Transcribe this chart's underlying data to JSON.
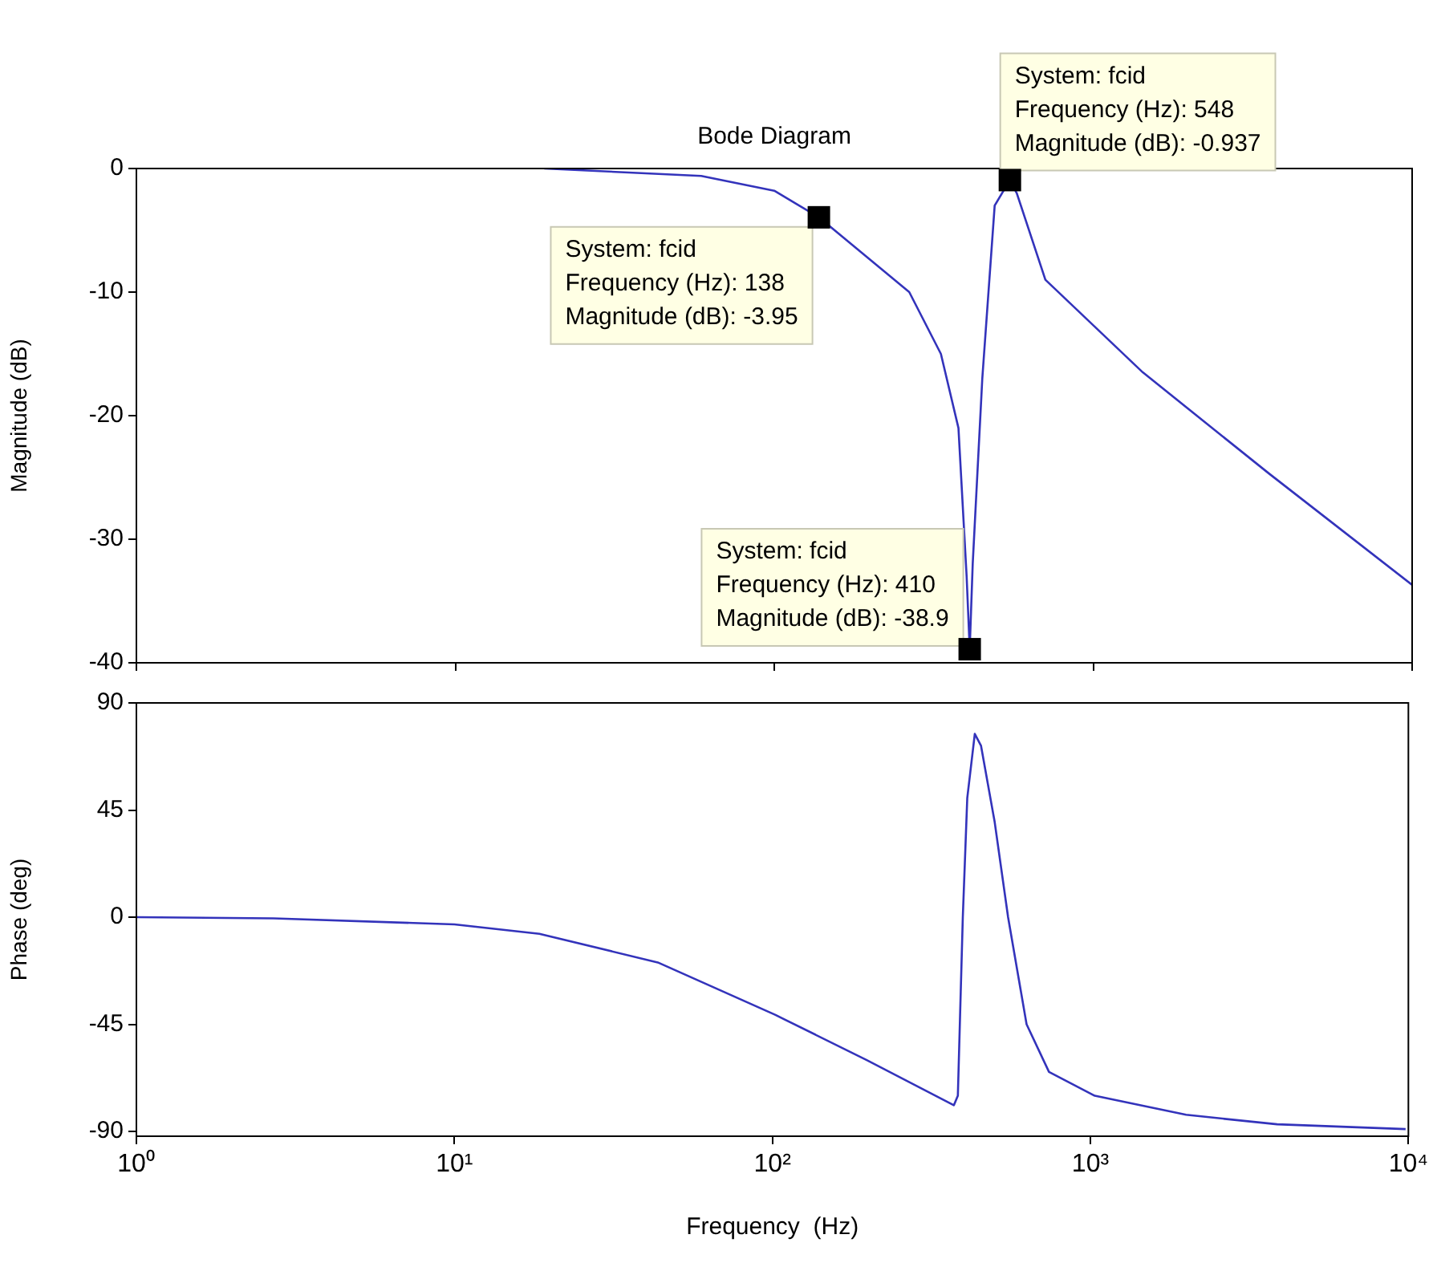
{
  "chart_data": [
    {
      "type": "line",
      "title": "Bode Diagram",
      "ylabel": "Magnitude (dB)",
      "log": "x",
      "grid": false,
      "tick_labels": "y",
      "xlim": [
        1,
        10000
      ],
      "xticks": [
        1,
        10,
        100,
        1000,
        10000
      ],
      "ylim": [
        -40,
        0
      ],
      "yticks": [
        -40,
        -30,
        -20,
        -10,
        0
      ],
      "x": [
        19,
        59,
        100,
        138,
        265,
        333,
        378,
        401,
        410,
        419,
        449,
        491,
        548,
        576,
        708,
        1431,
        3564,
        10000
      ],
      "series": [
        {
          "color": "#3333bb",
          "values": [
            0,
            -0.6,
            -1.8,
            -3.95,
            -10,
            -15,
            -21,
            -33,
            -38.9,
            -32,
            -17,
            -3,
            -0.937,
            -2,
            -9,
            -16.5,
            -24.7,
            -33.7
          ]
        }
      ],
      "annotations": [
        {
          "text": "System: fcid\nFrequency (Hz): 138\nMagnitude (dB): -3.95",
          "x": 138,
          "y": -3.95
        },
        {
          "text": "System: fcid\nFrequency (Hz): 410\nMagnitude (dB): -38.9",
          "x": 410,
          "y": -38.9
        },
        {
          "text": "System: fcid\nFrequency (Hz): 548\nMagnitude (dB): -0.937",
          "x": 548,
          "y": -0.937
        }
      ]
    },
    {
      "type": "line",
      "xlabel": "Frequency  (Hz)",
      "ylabel": "Phase (deg)",
      "log": "x",
      "grid": false,
      "xlim": [
        1,
        10000
      ],
      "xticks": [
        {
          "value": 1,
          "label": "10⁰"
        },
        {
          "value": 10,
          "label": "10¹"
        },
        {
          "value": 100,
          "label": "10²"
        },
        {
          "value": 1000,
          "label": "10³"
        },
        {
          "value": 10000,
          "label": "10⁴"
        }
      ],
      "ylim": [
        -92,
        90
      ],
      "yticks": [
        -90,
        -45,
        0,
        45,
        90
      ],
      "x": [
        1,
        2.7,
        10,
        18.5,
        43.6,
        102,
        198,
        372,
        383,
        397,
        410,
        433,
        453,
        500,
        551,
        630,
        741,
        1032,
        2000,
        3865,
        9800
      ],
      "series": [
        {
          "color": "#3333bb",
          "values": [
            0,
            -0.5,
            -3,
            -7,
            -19,
            -41,
            -60,
            -79,
            -75,
            0,
            50,
            77,
            72,
            40,
            0,
            -45,
            -65,
            -75,
            -83,
            -87,
            -89
          ]
        }
      ]
    }
  ]
}
